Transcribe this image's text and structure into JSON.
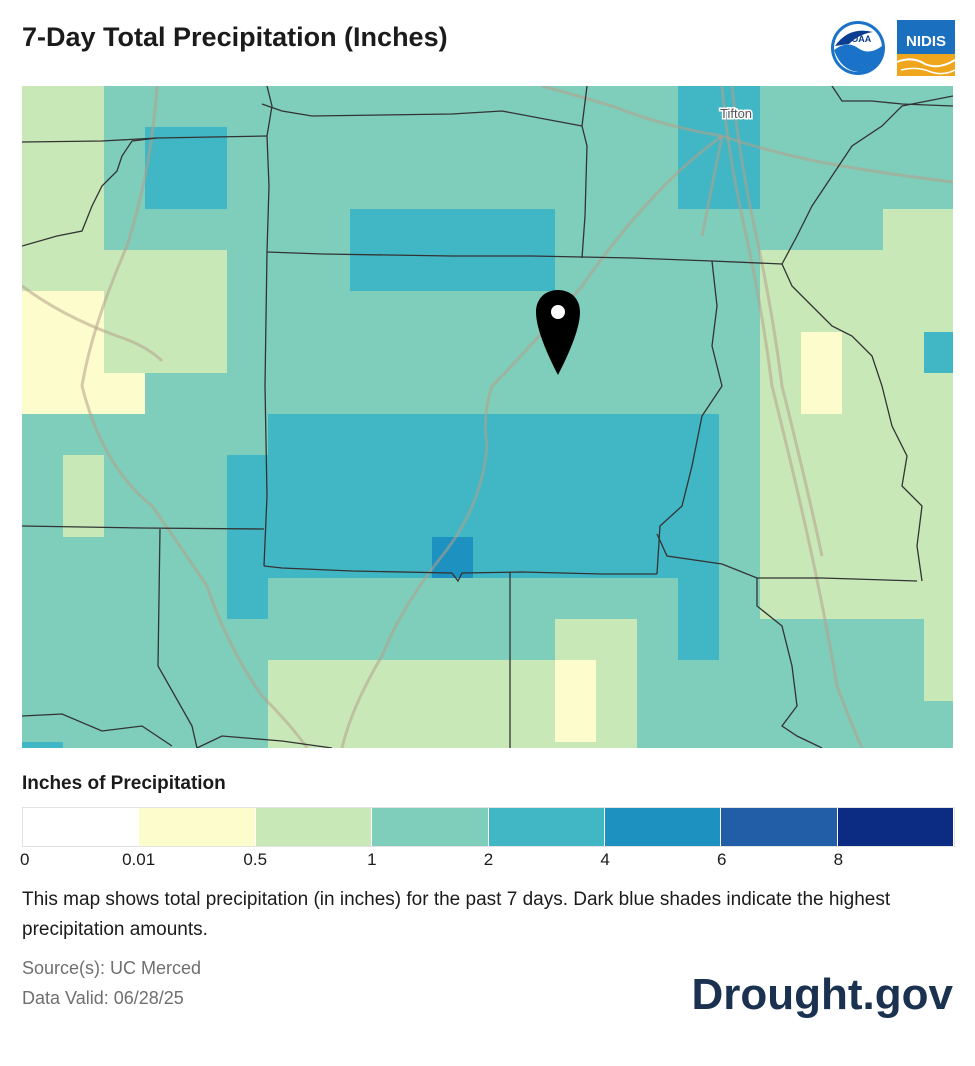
{
  "header": {
    "title": "7-Day Total Precipitation (Inches)"
  },
  "logos": [
    {
      "name": "NOAA",
      "text": "NOAA"
    },
    {
      "name": "NIDIS",
      "text": "NIDIS"
    }
  ],
  "map": {
    "place_labels": [
      {
        "name": "Tifton"
      }
    ]
  },
  "legend": {
    "title": "Inches of Precipitation",
    "bins": [
      {
        "color": "#ffffff"
      },
      {
        "color": "#fdfccc"
      },
      {
        "color": "#c9e8b8"
      },
      {
        "color": "#7fcdbb"
      },
      {
        "color": "#41b6c4"
      },
      {
        "color": "#1d91c0"
      },
      {
        "color": "#225ea8"
      },
      {
        "color": "#0c2c84"
      }
    ],
    "ticks": [
      "0",
      "0.01",
      "0.5",
      "1",
      "2",
      "4",
      "6",
      "8"
    ]
  },
  "description": "This map shows total precipitation (in inches) for the past 7 days. Dark blue shades indicate the highest precipitation amounts.",
  "source": "Source(s): UC Merced",
  "data_valid": "Data Valid: 06/28/25",
  "site": "Drought.gov"
}
